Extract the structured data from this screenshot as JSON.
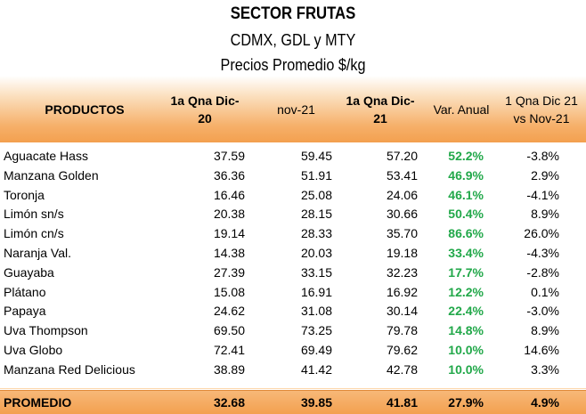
{
  "title": "SECTOR FRUTAS",
  "subtitle": "CDMX, GDL y MTY",
  "subtitle2": "Precios Promedio $/kg",
  "headers": {
    "productos": "PRODUCTOS",
    "col1_line1": "1a Qna Dic-",
    "col1_line2": "20",
    "col2": "nov-21",
    "col3_line1": "1a Qna Dic-",
    "col3_line2": "21",
    "col4": "Var. Anual",
    "col5_line1": "1 Qna Dic 21",
    "col5_line2": "vs Nov-21"
  },
  "rows": [
    {
      "producto": "Aguacate Hass",
      "dic20": "37.59",
      "nov21": "59.45",
      "dic21": "57.20",
      "var_anual": "52.2%",
      "var_mensual": "-3.8%"
    },
    {
      "producto": "Manzana Golden",
      "dic20": "36.36",
      "nov21": "51.91",
      "dic21": "53.41",
      "var_anual": "46.9%",
      "var_mensual": "2.9%"
    },
    {
      "producto": "Toronja",
      "dic20": "16.46",
      "nov21": "25.08",
      "dic21": "24.06",
      "var_anual": "46.1%",
      "var_mensual": "-4.1%"
    },
    {
      "producto": "Limón sn/s",
      "dic20": "20.38",
      "nov21": "28.15",
      "dic21": "30.66",
      "var_anual": "50.4%",
      "var_mensual": "8.9%"
    },
    {
      "producto": "Limón cn/s",
      "dic20": "19.14",
      "nov21": "28.33",
      "dic21": "35.70",
      "var_anual": "86.6%",
      "var_mensual": "26.0%"
    },
    {
      "producto": "Naranja Val.",
      "dic20": "14.38",
      "nov21": "20.03",
      "dic21": "19.18",
      "var_anual": "33.4%",
      "var_mensual": "-4.3%"
    },
    {
      "producto": "Guayaba",
      "dic20": "27.39",
      "nov21": "33.15",
      "dic21": "32.23",
      "var_anual": "17.7%",
      "var_mensual": "-2.8%"
    },
    {
      "producto": "Plátano",
      "dic20": "15.08",
      "nov21": "16.91",
      "dic21": "16.92",
      "var_anual": "12.2%",
      "var_mensual": "0.1%"
    },
    {
      "producto": "Papaya",
      "dic20": "24.62",
      "nov21": "31.08",
      "dic21": "30.14",
      "var_anual": "22.4%",
      "var_mensual": "-3.0%"
    },
    {
      "producto": "Uva Thompson",
      "dic20": "69.50",
      "nov21": "73.25",
      "dic21": "79.78",
      "var_anual": "14.8%",
      "var_mensual": "8.9%"
    },
    {
      "producto": "Uva Globo",
      "dic20": "72.41",
      "nov21": "69.49",
      "dic21": "79.62",
      "var_anual": "10.0%",
      "var_mensual": "14.6%"
    },
    {
      "producto": "Manzana Red Delicious",
      "dic20": "38.89",
      "nov21": "41.42",
      "dic21": "42.78",
      "var_anual": "10.0%",
      "var_mensual": "3.3%"
    }
  ],
  "footer": {
    "label": "PROMEDIO",
    "dic20": "32.68",
    "nov21": "39.85",
    "dic21": "41.81",
    "var_anual": "27.9%",
    "var_mensual": "4.9%"
  },
  "colors": {
    "header_orange": "#f3a04f",
    "positive_green": "#22a84a"
  }
}
